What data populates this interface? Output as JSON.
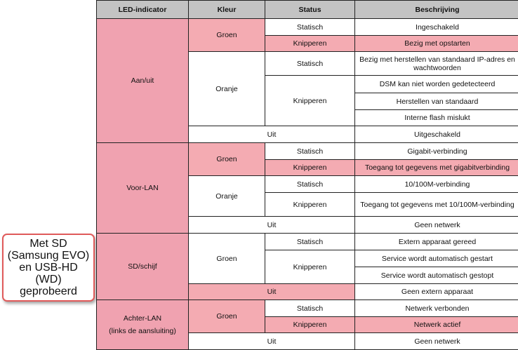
{
  "callout": {
    "lines": [
      "Met SD",
      "(Samsung EVO)",
      "en USB-HD",
      "(WD)",
      "geprobeerd"
    ]
  },
  "headers": [
    "LED-indicator",
    "Kleur",
    "Status",
    "Beschrijving"
  ],
  "groups": {
    "aan": {
      "led": "Aan/uit",
      "groen": "Groen",
      "oranje": "Oranje",
      "uit": "Uit",
      "rows": [
        "Statisch",
        "Ingeschakeld",
        "Knipperen",
        "Bezig met opstarten",
        "Statisch",
        "Bezig met herstellen van standaard IP-adres en wachtwoorden",
        "Knipperen",
        "DSM kan niet worden gedetecteerd",
        "Herstellen van standaard",
        "Interne flash mislukt",
        "Uitgeschakeld"
      ]
    },
    "voor": {
      "led": "Voor-LAN",
      "groen": "Groen",
      "oranje": "Oranje",
      "uit": "Uit",
      "rows": [
        "Statisch",
        "Gigabit-verbinding",
        "Knipperen",
        "Toegang tot gegevens met gigabitverbinding",
        "Statisch",
        "10/100M-verbinding",
        "Knipperen",
        "Toegang tot gegevens met 10/100M-verbinding",
        "Geen netwerk"
      ]
    },
    "sd": {
      "led": "SD/schijf",
      "groen": "Groen",
      "uit": "Uit",
      "rows": [
        "Statisch",
        "Extern apparaat gereed",
        "Knipperen",
        "Service wordt automatisch gestart",
        "Service wordt automatisch gestopt",
        "Geen extern apparaat"
      ]
    },
    "achter": {
      "led": "Achter-LAN",
      "led_sub": "(links de aansluiting)",
      "groen": "Groen",
      "uit": "Uit",
      "rows": [
        "Statisch",
        "Netwerk verbonden",
        "Knipperen",
        "Netwerk actief",
        "Geen netwerk"
      ]
    }
  },
  "colors": {
    "header": "#c3c3c3",
    "led_column": "#f0a2b0",
    "highlight": "#f4abb2",
    "callout_border": "#e05a5a"
  }
}
